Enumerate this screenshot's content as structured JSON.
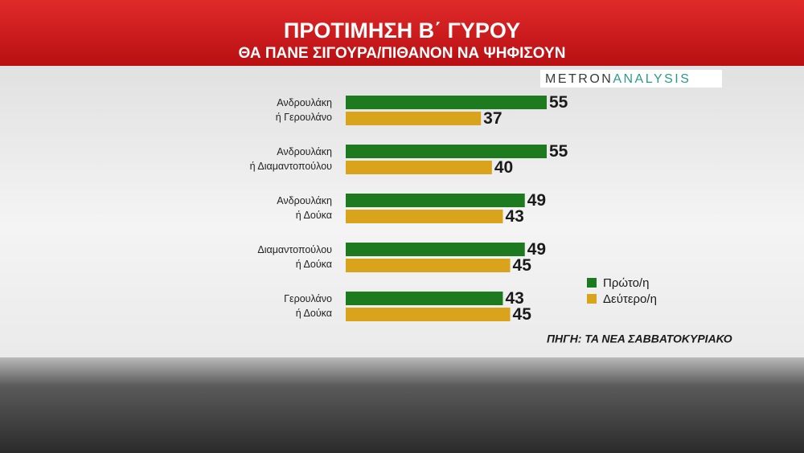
{
  "chart_data": {
    "type": "bar",
    "orientation": "horizontal",
    "title": "ΠΡΟΤΙΜΗΣΗ Β΄ ΓΥΡΟΥ",
    "subtitle": "ΘΑ ΠΑΝΕ ΣΙΓΟΥΡΑ/ΠΙΘΑΝΟΝ ΝΑ ΨΗΦΙΣΟΥΝ",
    "logo": [
      "METRON",
      "ANALYSIS"
    ],
    "categories": [
      [
        "Ανδρουλάκη",
        "ή Γερουλάνο"
      ],
      [
        "Ανδρουλάκη",
        "ή Διαμαντοπούλου"
      ],
      [
        "Ανδρουλάκη",
        "ή Δούκα"
      ],
      [
        "Διαμαντοπούλου",
        "ή Δούκα"
      ],
      [
        "Γερουλάνο",
        "ή Δούκα"
      ]
    ],
    "series": [
      {
        "name": "Πρώτο/η",
        "color": "#1d7a1f",
        "values": [
          55,
          55,
          49,
          49,
          43
        ]
      },
      {
        "name": "Δεύτερο/η",
        "color": "#d9a31c",
        "values": [
          37,
          40,
          43,
          45,
          45
        ]
      }
    ],
    "legend": "right",
    "source": "ΠΗΓΗ: ΤΑ ΝΕΑ ΣΑΒΒΑΤΟΚΥΡΙΑΚΟ"
  }
}
